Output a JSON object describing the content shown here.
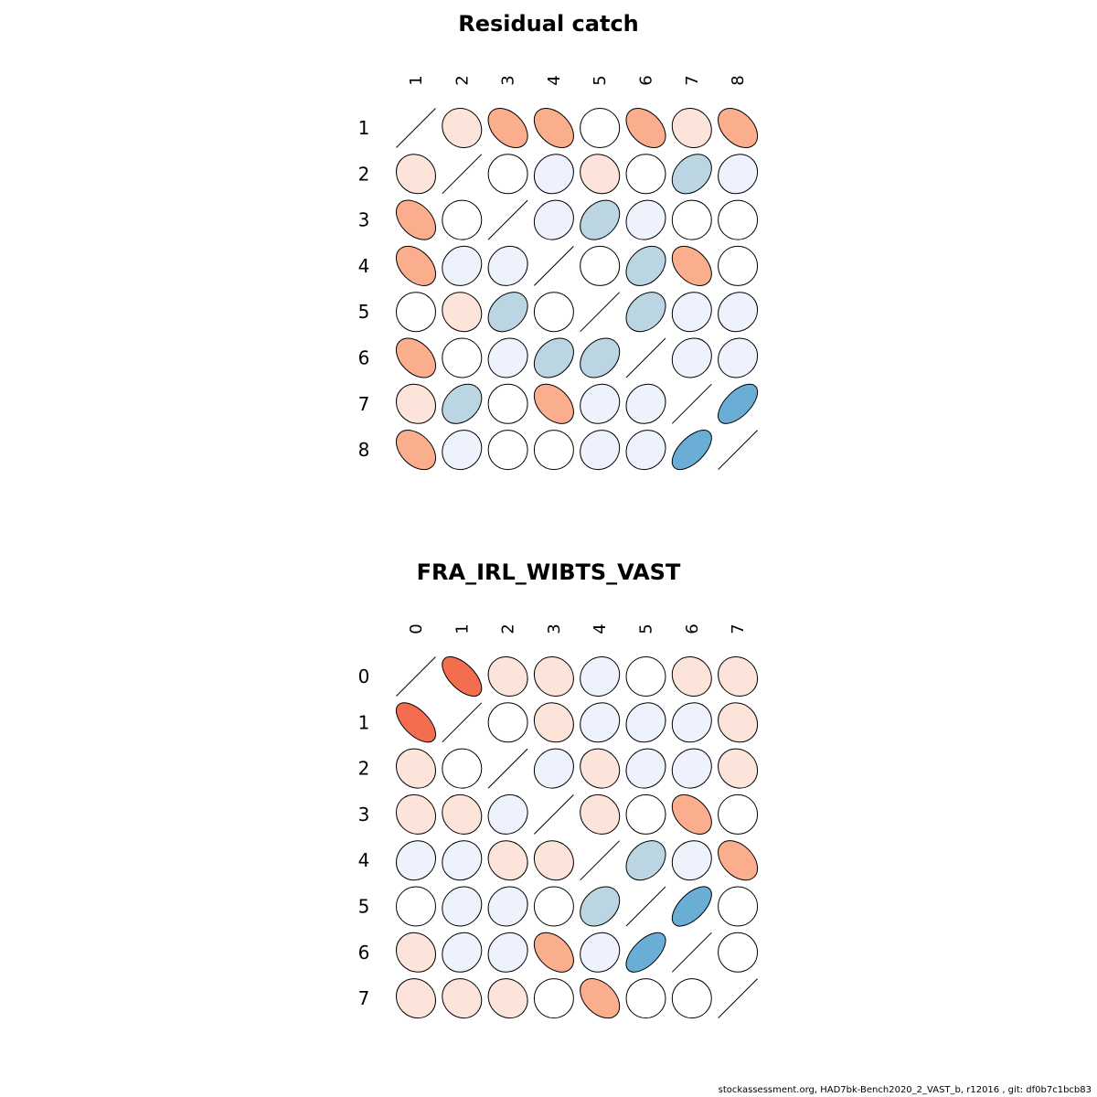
{
  "colors": {
    "strong_neg": "#F46D4E",
    "mid_neg": "#FBAE8E",
    "weak_neg": "#FDE4DA",
    "zero": "#FFFFFF",
    "weak_pos": "#EEF2FD",
    "mid_pos": "#BCD5E3",
    "strong_pos": "#6AAED6",
    "outline": "#000000"
  },
  "chart_data": [
    {
      "type": "heatmap",
      "subtype": "ellipse-correlation-matrix",
      "title": "Residual catch",
      "row_labels": [
        "1",
        "2",
        "3",
        "4",
        "5",
        "6",
        "7",
        "8"
      ],
      "col_labels": [
        "1",
        "2",
        "3",
        "4",
        "5",
        "6",
        "7",
        "8"
      ],
      "diagonal": "line",
      "values": [
        [
          null,
          -0.1,
          -0.4,
          -0.4,
          0.0,
          -0.4,
          -0.1,
          -0.4
        ],
        [
          -0.1,
          null,
          0.0,
          0.1,
          -0.1,
          0.0,
          0.3,
          0.1
        ],
        [
          -0.4,
          0.0,
          null,
          0.1,
          0.3,
          0.1,
          0.0,
          0.0
        ],
        [
          -0.4,
          0.1,
          0.1,
          null,
          0.0,
          0.3,
          -0.4,
          0.0
        ],
        [
          0.0,
          -0.1,
          0.3,
          0.0,
          null,
          0.3,
          0.1,
          0.1
        ],
        [
          -0.4,
          0.0,
          0.1,
          0.3,
          0.3,
          null,
          0.1,
          0.1
        ],
        [
          -0.1,
          0.3,
          0.0,
          -0.4,
          0.1,
          0.1,
          null,
          0.6
        ],
        [
          -0.4,
          0.1,
          0.0,
          0.0,
          0.1,
          0.1,
          0.6,
          null
        ]
      ]
    },
    {
      "type": "heatmap",
      "subtype": "ellipse-correlation-matrix",
      "title": "FRA_IRL_WIBTS_VAST",
      "row_labels": [
        "0",
        "1",
        "2",
        "3",
        "4",
        "5",
        "6",
        "7"
      ],
      "col_labels": [
        "0",
        "1",
        "2",
        "3",
        "4",
        "5",
        "6",
        "7"
      ],
      "diagonal": "line",
      "values": [
        [
          null,
          -0.6,
          -0.1,
          -0.1,
          0.1,
          0.0,
          -0.1,
          -0.1
        ],
        [
          -0.6,
          null,
          0.0,
          -0.1,
          0.1,
          0.1,
          0.1,
          -0.1
        ],
        [
          -0.1,
          0.0,
          null,
          0.1,
          -0.1,
          0.1,
          0.1,
          -0.1
        ],
        [
          -0.1,
          -0.1,
          0.1,
          null,
          -0.1,
          0.0,
          -0.4,
          0.0
        ],
        [
          0.1,
          0.1,
          -0.1,
          -0.1,
          null,
          0.3,
          0.1,
          -0.4
        ],
        [
          0.0,
          0.1,
          0.1,
          0.0,
          0.3,
          null,
          0.6,
          0.0
        ],
        [
          -0.1,
          0.1,
          0.1,
          -0.4,
          0.1,
          0.6,
          null,
          0.0
        ],
        [
          -0.1,
          -0.1,
          -0.1,
          0.0,
          -0.4,
          0.0,
          0.0,
          null
        ]
      ]
    }
  ],
  "footer": {
    "text": "stockassessment.org, HAD7bk-Bench2020_2_VAST_b, r12016 , git: df0b7c1bcb83"
  }
}
